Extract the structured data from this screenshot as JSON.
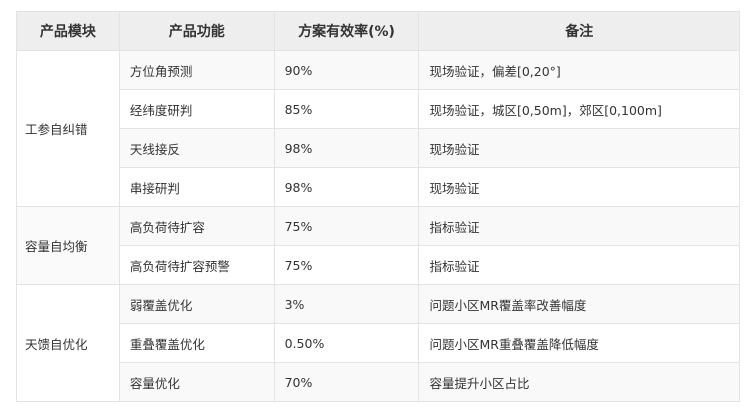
{
  "table": {
    "headers": [
      "产品模块",
      "产品功能",
      "方案有效率(%)",
      "备注"
    ],
    "groups": [
      {
        "module": "工参自纠错",
        "rows": [
          {
            "feature": "方位角预测",
            "rate": "90%",
            "note": "现场验证，偏差[0,20°]"
          },
          {
            "feature": "经纬度研判",
            "rate": "85%",
            "note": "现场验证，城区[0,50m]，郊区[0,100m]"
          },
          {
            "feature": "天线接反",
            "rate": "98%",
            "note": "现场验证"
          },
          {
            "feature": "串接研判",
            "rate": "98%",
            "note": "现场验证"
          }
        ]
      },
      {
        "module": "容量自均衡",
        "rows": [
          {
            "feature": "高负荷待扩容",
            "rate": "75%",
            "note": "指标验证"
          },
          {
            "feature": "高负荷待扩容预警",
            "rate": "75%",
            "note": "指标验证"
          }
        ]
      },
      {
        "module": "天馈自优化",
        "rows": [
          {
            "feature": "弱覆盖优化",
            "rate": "3%",
            "note": "问题小区MR覆盖率改善幅度"
          },
          {
            "feature": "重叠覆盖优化",
            "rate": "0.50%",
            "note": "问题小区MR重叠覆盖降低幅度"
          },
          {
            "feature": "容量优化",
            "rate": "70%",
            "note": "容量提升小区占比"
          }
        ]
      }
    ]
  }
}
